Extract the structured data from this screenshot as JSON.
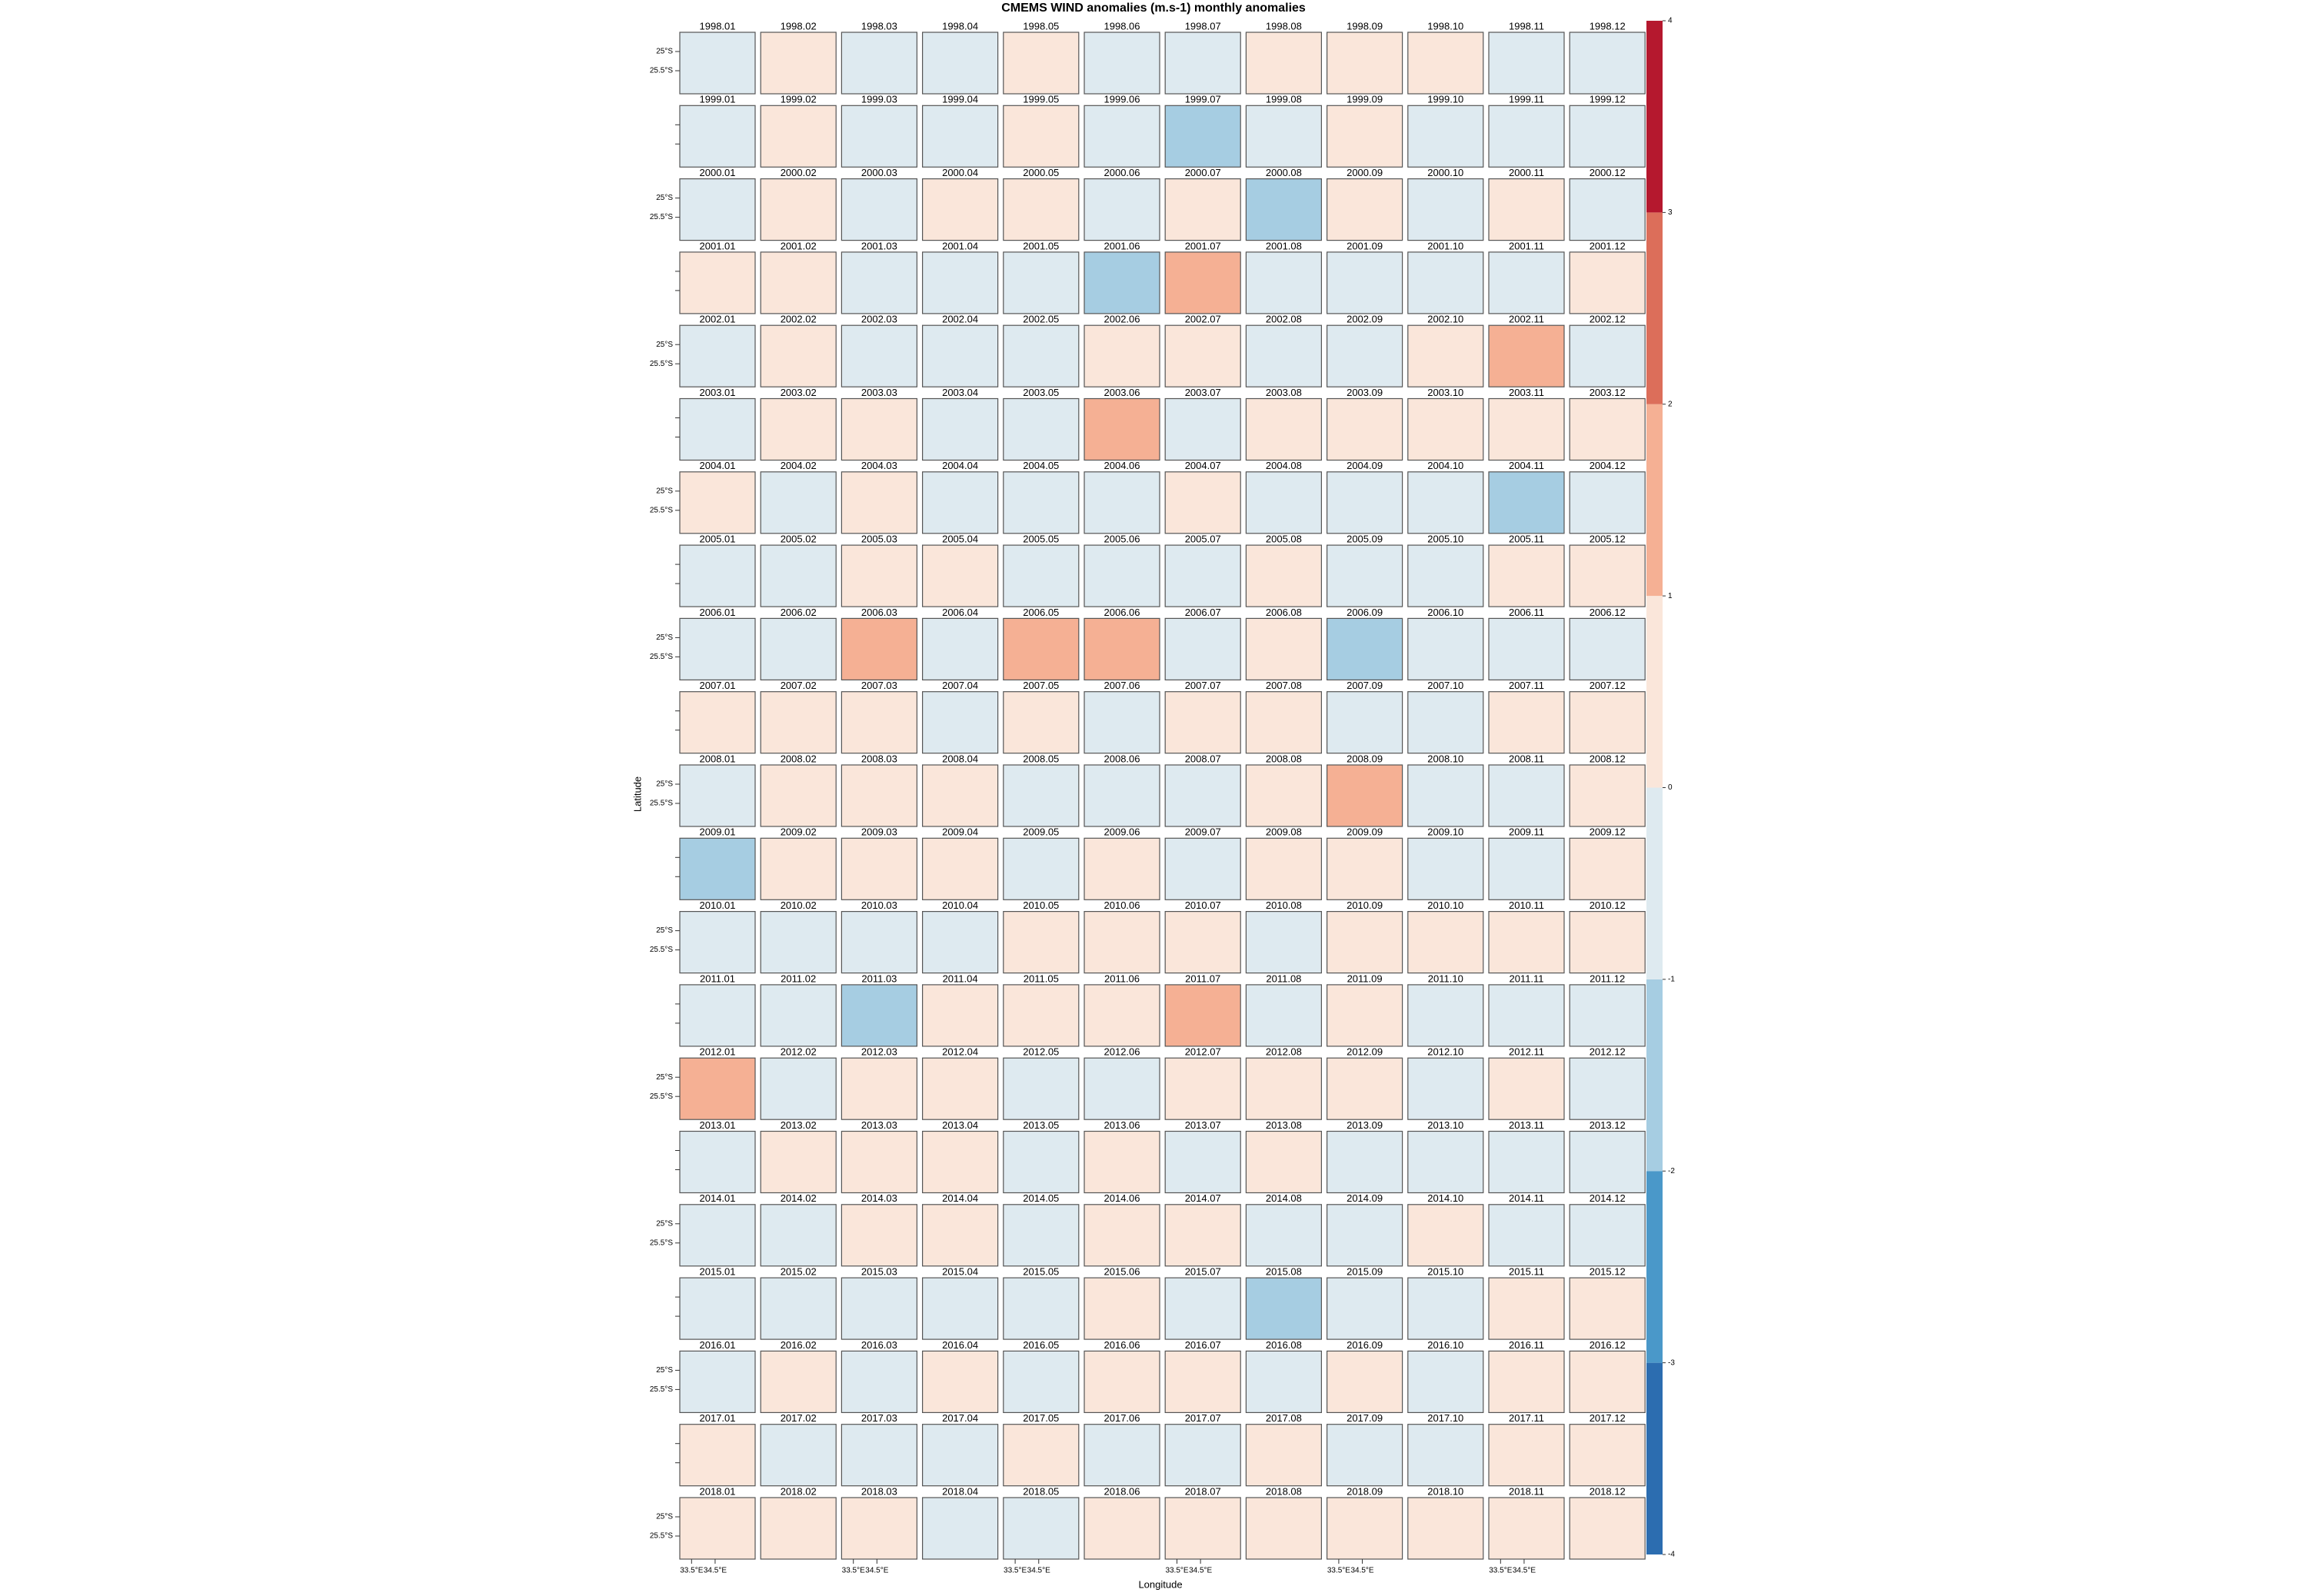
{
  "chart_data": {
    "type": "map-grid",
    "title": "CMEMS WIND anomalies (m.s-1) monthly anomalies",
    "xlabel": "Longitude",
    "ylabel": "Latitude",
    "xlim": [
      33,
      36.2
    ],
    "xticks": [
      {
        "value": 33.5,
        "label": "33.5°E"
      },
      {
        "value": 34.5,
        "label": "34.5°E"
      }
    ],
    "ylim": [
      -26.1,
      -24.5
    ],
    "yticks": [
      {
        "value": -25,
        "label": "25°S"
      },
      {
        "value": -25.5,
        "label": "25.5°S"
      }
    ],
    "columns": 12,
    "colorbar_lim": [
      -4,
      4
    ],
    "colorbar_ticks": [
      -4,
      -3,
      -2,
      -1,
      0,
      1,
      2,
      3,
      4
    ],
    "colorbar_colors": [
      "#2c6db0",
      "#4a98c9",
      "#a6cde2",
      "#deeaf0",
      "#fae6da",
      "#f5b094",
      "#dc6e5a",
      "#b5182e"
    ],
    "titles": [
      "1998.01",
      "1998.02",
      "1998.03",
      "1998.04",
      "1998.05",
      "1998.06",
      "1998.07",
      "1998.08",
      "1998.09",
      "1998.10",
      "1998.11",
      "1998.12",
      "1999.01",
      "1999.02",
      "1999.03",
      "1999.04",
      "1999.05",
      "1999.06",
      "1999.07",
      "1999.08",
      "1999.09",
      "1999.10",
      "1999.11",
      "1999.12",
      "2000.01",
      "2000.02",
      "2000.03",
      "2000.04",
      "2000.05",
      "2000.06",
      "2000.07",
      "2000.08",
      "2000.09",
      "2000.10",
      "2000.11",
      "2000.12",
      "2001.01",
      "2001.02",
      "2001.03",
      "2001.04",
      "2001.05",
      "2001.06",
      "2001.07",
      "2001.08",
      "2001.09",
      "2001.10",
      "2001.11",
      "2001.12",
      "2002.01",
      "2002.02",
      "2002.03",
      "2002.04",
      "2002.05",
      "2002.06",
      "2002.07",
      "2002.08",
      "2002.09",
      "2002.10",
      "2002.11",
      "2002.12",
      "2003.01",
      "2003.02",
      "2003.03",
      "2003.04",
      "2003.05",
      "2003.06",
      "2003.07",
      "2003.08",
      "2003.09",
      "2003.10",
      "2003.11",
      "2003.12",
      "2004.01",
      "2004.02",
      "2004.03",
      "2004.04",
      "2004.05",
      "2004.06",
      "2004.07",
      "2004.08",
      "2004.09",
      "2004.10",
      "2004.11",
      "2004.12",
      "2005.01",
      "2005.02",
      "2005.03",
      "2005.04",
      "2005.05",
      "2005.06",
      "2005.07",
      "2005.08",
      "2005.09",
      "2005.10",
      "2005.11",
      "2005.12",
      "2006.01",
      "2006.02",
      "2006.03",
      "2006.04",
      "2006.05",
      "2006.06",
      "2006.07",
      "2006.08",
      "2006.09",
      "2006.10",
      "2006.11",
      "2006.12",
      "2007.01",
      "2007.02",
      "2007.03",
      "2007.04",
      "2007.05",
      "2007.06",
      "2007.07",
      "2007.08",
      "2007.09",
      "2007.10",
      "2007.11",
      "2007.12",
      "2008.01",
      "2008.02",
      "2008.03",
      "2008.04",
      "2008.05",
      "2008.06",
      "2008.07",
      "2008.08",
      "2008.09",
      "2008.10",
      "2008.11",
      "2008.12",
      "2009.01",
      "2009.02",
      "2009.03",
      "2009.04",
      "2009.05",
      "2009.06",
      "2009.07",
      "2009.08",
      "2009.09",
      "2009.10",
      "2009.11",
      "2009.12",
      "2010.01",
      "2010.02",
      "2010.03",
      "2010.04",
      "2010.05",
      "2010.06",
      "2010.07",
      "2010.08",
      "2010.09",
      "2010.10",
      "2010.11",
      "2010.12",
      "2011.01",
      "2011.02",
      "2011.03",
      "2011.04",
      "2011.05",
      "2011.06",
      "2011.07",
      "2011.08",
      "2011.09",
      "2011.10",
      "2011.11",
      "2011.12",
      "2012.01",
      "2012.02",
      "2012.03",
      "2012.04",
      "2012.05",
      "2012.06",
      "2012.07",
      "2012.08",
      "2012.09",
      "2012.10",
      "2012.11",
      "2012.12",
      "2013.01",
      "2013.02",
      "2013.03",
      "2013.04",
      "2013.05",
      "2013.06",
      "2013.07",
      "2013.08",
      "2013.09",
      "2013.10",
      "2013.11",
      "2013.12",
      "2014.01",
      "2014.02",
      "2014.03",
      "2014.04",
      "2014.05",
      "2014.06",
      "2014.07",
      "2014.08",
      "2014.09",
      "2014.10",
      "2014.11",
      "2014.12",
      "2015.01",
      "2015.02",
      "2015.03",
      "2015.04",
      "2015.05",
      "2015.06",
      "2015.07",
      "2015.08",
      "2015.09",
      "2015.10",
      "2015.11",
      "2015.12",
      "2016.01",
      "2016.02",
      "2016.03",
      "2016.04",
      "2016.05",
      "2016.06",
      "2016.07",
      "2016.08",
      "2016.09",
      "2016.10",
      "2016.11",
      "2016.12",
      "2017.01",
      "2017.02",
      "2017.03",
      "2017.04",
      "2017.05",
      "2017.06",
      "2017.07",
      "2017.08",
      "2017.09",
      "2017.10",
      "2017.11",
      "2017.12",
      "2018.01",
      "2018.02",
      "2018.03",
      "2018.04",
      "2018.05",
      "2018.06",
      "2018.07",
      "2018.08",
      "2018.09",
      "2018.10",
      "2018.11",
      "2018.12"
    ],
    "colors": [
      "#deeaf0",
      "#fae6da",
      "#deeaf0",
      "#deeaf0",
      "#fae6da",
      "#deeaf0",
      "#deeaf0",
      "#fae6da",
      "#fae6da",
      "#fae6da",
      "#deeaf0",
      "#deeaf0",
      "#deeaf0",
      "#fae6da",
      "#deeaf0",
      "#deeaf0",
      "#fae6da",
      "#deeaf0",
      "#a6cde2",
      "#deeaf0",
      "#fae6da",
      "#deeaf0",
      "#deeaf0",
      "#deeaf0",
      "#deeaf0",
      "#fae6da",
      "#deeaf0",
      "#fae6da",
      "#fae6da",
      "#deeaf0",
      "#fae6da",
      "#a6cde2",
      "#fae6da",
      "#deeaf0",
      "#fae6da",
      "#deeaf0",
      "#fae6da",
      "#fae6da",
      "#deeaf0",
      "#deeaf0",
      "#deeaf0",
      "#a6cde2",
      "#f5b094",
      "#deeaf0",
      "#deeaf0",
      "#deeaf0",
      "#deeaf0",
      "#fae6da",
      "#deeaf0",
      "#fae6da",
      "#deeaf0",
      "#deeaf0",
      "#deeaf0",
      "#fae6da",
      "#fae6da",
      "#deeaf0",
      "#deeaf0",
      "#fae6da",
      "#f5b094",
      "#deeaf0",
      "#deeaf0",
      "#fae6da",
      "#fae6da",
      "#deeaf0",
      "#deeaf0",
      "#f5b094",
      "#deeaf0",
      "#fae6da",
      "#fae6da",
      "#fae6da",
      "#fae6da",
      "#fae6da",
      "#fae6da",
      "#deeaf0",
      "#fae6da",
      "#deeaf0",
      "#deeaf0",
      "#deeaf0",
      "#fae6da",
      "#deeaf0",
      "#deeaf0",
      "#deeaf0",
      "#a6cde2",
      "#deeaf0",
      "#deeaf0",
      "#deeaf0",
      "#fae6da",
      "#fae6da",
      "#deeaf0",
      "#deeaf0",
      "#deeaf0",
      "#fae6da",
      "#deeaf0",
      "#deeaf0",
      "#fae6da",
      "#fae6da",
      "#deeaf0",
      "#deeaf0",
      "#f5b094",
      "#deeaf0",
      "#f5b094",
      "#f5b094",
      "#deeaf0",
      "#fae6da",
      "#a6cde2",
      "#deeaf0",
      "#deeaf0",
      "#deeaf0",
      "#fae6da",
      "#fae6da",
      "#fae6da",
      "#deeaf0",
      "#fae6da",
      "#deeaf0",
      "#fae6da",
      "#fae6da",
      "#deeaf0",
      "#deeaf0",
      "#fae6da",
      "#fae6da",
      "#deeaf0",
      "#fae6da",
      "#fae6da",
      "#fae6da",
      "#deeaf0",
      "#deeaf0",
      "#deeaf0",
      "#fae6da",
      "#f5b094",
      "#deeaf0",
      "#deeaf0",
      "#fae6da",
      "#a6cde2",
      "#fae6da",
      "#fae6da",
      "#fae6da",
      "#deeaf0",
      "#fae6da",
      "#deeaf0",
      "#fae6da",
      "#fae6da",
      "#deeaf0",
      "#deeaf0",
      "#fae6da",
      "#deeaf0",
      "#deeaf0",
      "#deeaf0",
      "#deeaf0",
      "#fae6da",
      "#fae6da",
      "#fae6da",
      "#deeaf0",
      "#fae6da",
      "#fae6da",
      "#fae6da",
      "#fae6da",
      "#deeaf0",
      "#deeaf0",
      "#a6cde2",
      "#fae6da",
      "#fae6da",
      "#fae6da",
      "#f5b094",
      "#deeaf0",
      "#fae6da",
      "#deeaf0",
      "#deeaf0",
      "#deeaf0",
      "#f5b094",
      "#deeaf0",
      "#fae6da",
      "#fae6da",
      "#deeaf0",
      "#deeaf0",
      "#fae6da",
      "#fae6da",
      "#fae6da",
      "#deeaf0",
      "#fae6da",
      "#deeaf0",
      "#deeaf0",
      "#fae6da",
      "#fae6da",
      "#fae6da",
      "#deeaf0",
      "#fae6da",
      "#deeaf0",
      "#fae6da",
      "#deeaf0",
      "#deeaf0",
      "#deeaf0",
      "#deeaf0",
      "#deeaf0",
      "#deeaf0",
      "#fae6da",
      "#fae6da",
      "#deeaf0",
      "#fae6da",
      "#fae6da",
      "#deeaf0",
      "#deeaf0",
      "#fae6da",
      "#deeaf0",
      "#deeaf0",
      "#deeaf0",
      "#deeaf0",
      "#deeaf0",
      "#deeaf0",
      "#deeaf0",
      "#fae6da",
      "#deeaf0",
      "#a6cde2",
      "#deeaf0",
      "#deeaf0",
      "#fae6da",
      "#fae6da",
      "#deeaf0",
      "#fae6da",
      "#deeaf0",
      "#fae6da",
      "#deeaf0",
      "#fae6da",
      "#fae6da",
      "#deeaf0",
      "#fae6da",
      "#deeaf0",
      "#fae6da",
      "#fae6da",
      "#fae6da",
      "#deeaf0",
      "#deeaf0",
      "#deeaf0",
      "#fae6da",
      "#deeaf0",
      "#deeaf0",
      "#fae6da",
      "#deeaf0",
      "#deeaf0",
      "#fae6da",
      "#fae6da",
      "#fae6da",
      "#fae6da",
      "#fae6da",
      "#deeaf0",
      "#deeaf0",
      "#fae6da",
      "#fae6da",
      "#fae6da",
      "#fae6da",
      "#fae6da",
      "#fae6da",
      "#fae6da"
    ]
  }
}
